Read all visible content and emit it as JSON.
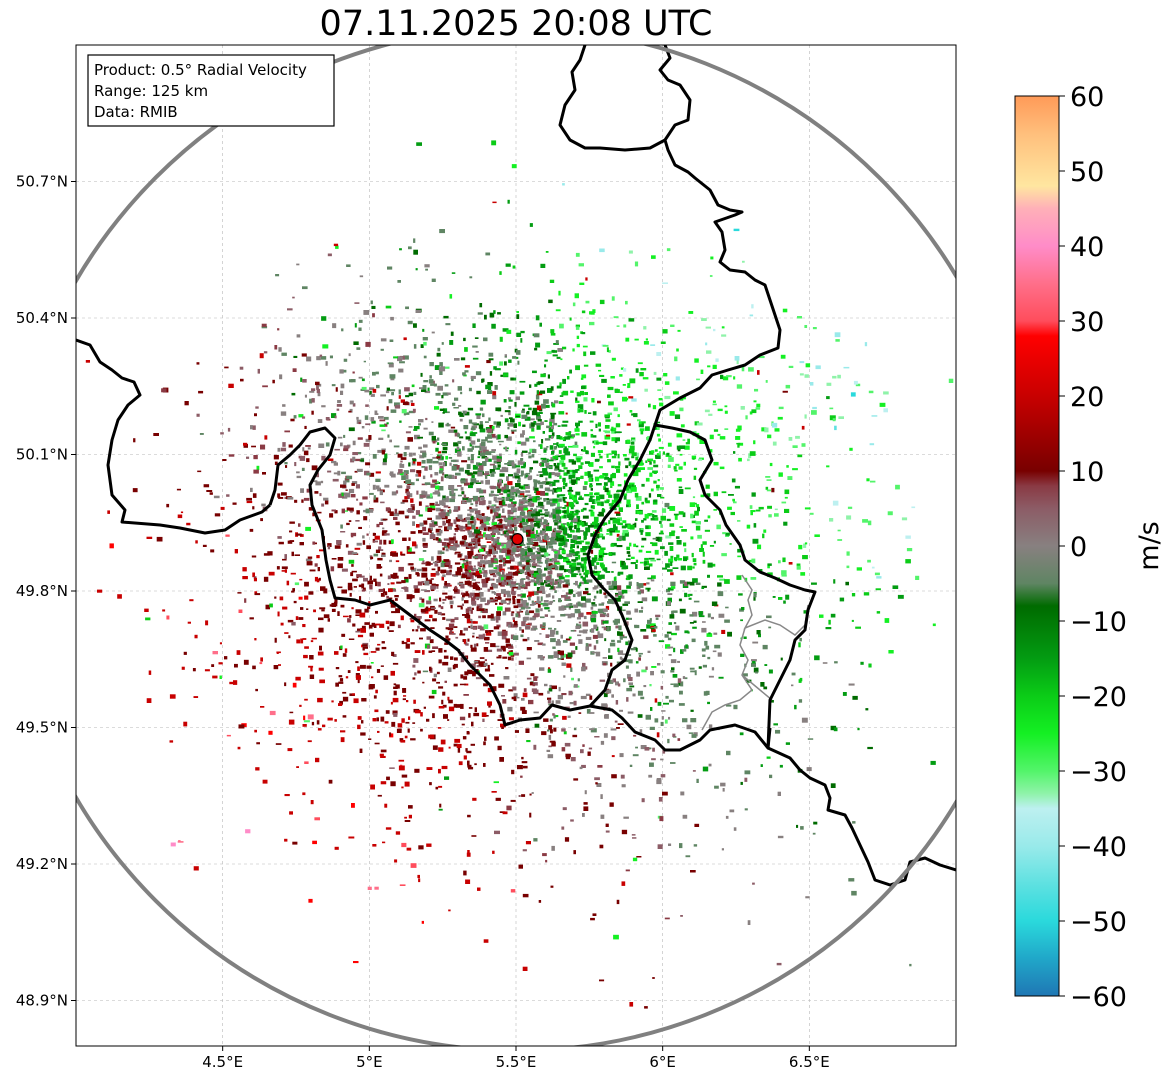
{
  "title": "07.11.2025 20:08 UTC",
  "info_box": {
    "lines": [
      "Product: 0.5° Radial Velocity",
      "Range: 125 km",
      "Data: RMIB"
    ]
  },
  "map": {
    "lon_range": [
      4.0,
      7.0
    ],
    "lat_range": [
      48.8,
      51.0
    ],
    "x_ticks": [
      {
        "value": 4.5,
        "label": "4.5°E"
      },
      {
        "value": 5.0,
        "label": "5°E"
      },
      {
        "value": 5.5,
        "label": "5.5°E"
      },
      {
        "value": 6.0,
        "label": "6°E"
      },
      {
        "value": 6.5,
        "label": "6.5°E"
      }
    ],
    "y_ticks": [
      {
        "value": 50.7,
        "label": "50.7°N"
      },
      {
        "value": 50.4,
        "label": "50.4°N"
      },
      {
        "value": 50.1,
        "label": "50.1°N"
      },
      {
        "value": 49.8,
        "label": "49.8°N"
      },
      {
        "value": 49.5,
        "label": "49.5°N"
      },
      {
        "value": 49.2,
        "label": "49.2°N"
      },
      {
        "value": 48.9,
        "label": "48.9°N"
      }
    ],
    "grid": true,
    "radar_site": {
      "lon": 5.505,
      "lat": 49.914
    },
    "range_ring_km": 125,
    "range_ring_color": "#808080",
    "border_color": "#000000",
    "region_border_color": "#888888"
  },
  "colorbar": {
    "label": "m/s",
    "min": -60,
    "max": 60,
    "ticks": [
      {
        "value": 60,
        "label": "60"
      },
      {
        "value": 50,
        "label": "50"
      },
      {
        "value": 40,
        "label": "40"
      },
      {
        "value": 30,
        "label": "30"
      },
      {
        "value": 20,
        "label": "20"
      },
      {
        "value": 10,
        "label": "10"
      },
      {
        "value": 0,
        "label": "0"
      },
      {
        "value": -10,
        "label": "−10"
      },
      {
        "value": -20,
        "label": "−20"
      },
      {
        "value": -30,
        "label": "−30"
      },
      {
        "value": -40,
        "label": "−40"
      },
      {
        "value": -50,
        "label": "−50"
      },
      {
        "value": -60,
        "label": "−60"
      }
    ],
    "stops": [
      {
        "v": -60,
        "c": "#1f77b4"
      },
      {
        "v": -55,
        "c": "#20a7c9"
      },
      {
        "v": -50,
        "c": "#2ad9dc"
      },
      {
        "v": -45,
        "c": "#5fe1e1"
      },
      {
        "v": -40,
        "c": "#99eaea"
      },
      {
        "v": -35,
        "c": "#bdf0f0"
      },
      {
        "v": -33,
        "c": "#8ff3a9"
      },
      {
        "v": -30,
        "c": "#53f46a"
      },
      {
        "v": -25,
        "c": "#14f023"
      },
      {
        "v": -20,
        "c": "#0bcc17"
      },
      {
        "v": -15,
        "c": "#039c12"
      },
      {
        "v": -8,
        "c": "#006b00"
      },
      {
        "v": -5,
        "c": "#5f8563"
      },
      {
        "v": 0,
        "c": "#888080"
      },
      {
        "v": 5,
        "c": "#8c5c66"
      },
      {
        "v": 8,
        "c": "#8a3a44"
      },
      {
        "v": 10,
        "c": "#780000"
      },
      {
        "v": 20,
        "c": "#c80000"
      },
      {
        "v": 28,
        "c": "#ff0000"
      },
      {
        "v": 30,
        "c": "#ff4d5c"
      },
      {
        "v": 35,
        "c": "#ff6f8a"
      },
      {
        "v": 40,
        "c": "#ff8cc8"
      },
      {
        "v": 45,
        "c": "#ffb0b8"
      },
      {
        "v": 48,
        "c": "#ffe6a0"
      },
      {
        "v": 55,
        "c": "#ffbf7c"
      },
      {
        "v": 60,
        "c": "#ff9a58"
      }
    ]
  }
}
